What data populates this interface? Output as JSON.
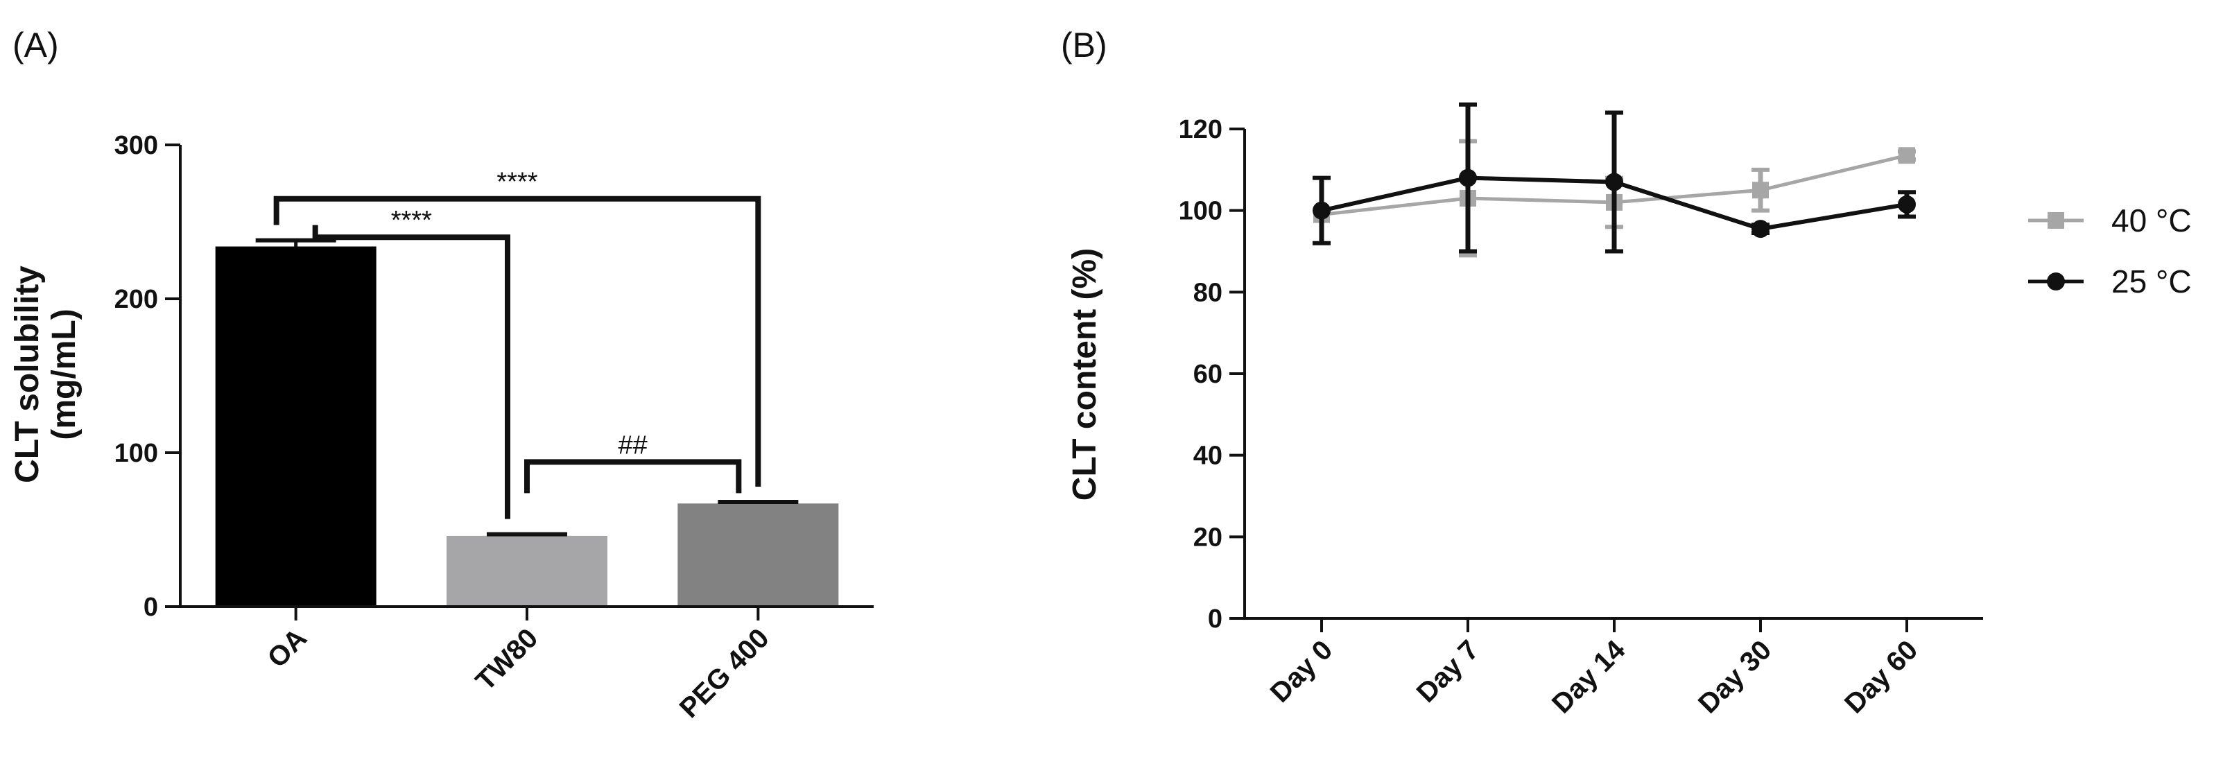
{
  "chart_data": [
    {
      "type": "bar",
      "panel_label": "(A)",
      "categories": [
        "OA",
        "TW80",
        "PEG 400"
      ],
      "values": [
        234,
        46,
        67
      ],
      "errors": [
        4,
        1,
        1
      ],
      "colors": [
        "#000000",
        "#a6a6a8",
        "#828282"
      ],
      "ylabel_lines": [
        "CLT solubility",
        "(mg/mL)"
      ],
      "xlabel": "",
      "ylim": [
        0,
        300
      ],
      "yticks": [
        "0",
        "100",
        "200",
        "300"
      ],
      "annotations": [
        {
          "from": 0,
          "to": 2,
          "label": "****"
        },
        {
          "from": 0,
          "to": 1,
          "label": "****"
        },
        {
          "from": 1,
          "to": 2,
          "label": "##"
        }
      ]
    },
    {
      "type": "line",
      "panel_label": "(B)",
      "categories": [
        "Day 0",
        "Day 7",
        "Day 14",
        "Day 30",
        "Day 60"
      ],
      "ylabel": "CLT content (%)",
      "xlabel": "",
      "ylim": [
        0,
        120
      ],
      "yticks": [
        "0",
        "20",
        "40",
        "60",
        "80",
        "100",
        "120"
      ],
      "series": [
        {
          "name": "40 °C",
          "color": "#a6a6a6",
          "marker": "square",
          "values": [
            99,
            103,
            102,
            105,
            113.5
          ],
          "errors": [
            0,
            14,
            6,
            5,
            1
          ]
        },
        {
          "name": "25 °C",
          "color": "#111111",
          "marker": "circle",
          "values": [
            100,
            108,
            107,
            95.5,
            101.5
          ],
          "errors": [
            8,
            18,
            17,
            1,
            3
          ]
        }
      ],
      "legend_position": "right"
    }
  ]
}
